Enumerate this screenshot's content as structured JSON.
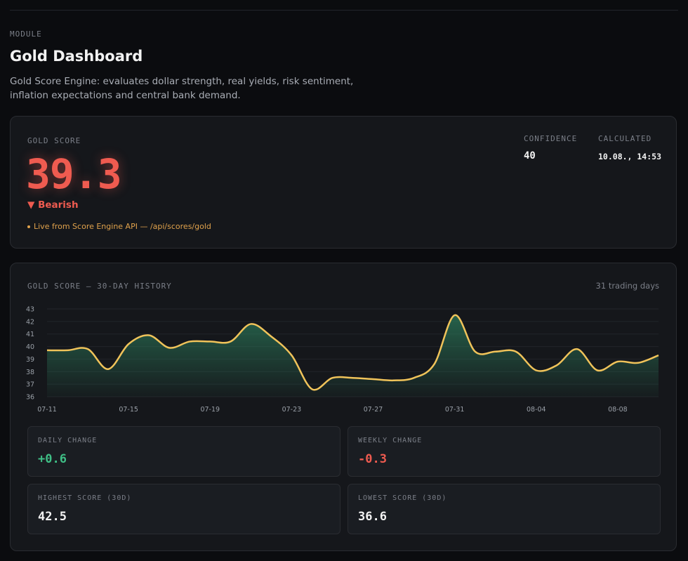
{
  "header": {
    "module_label": "MODULE",
    "title": "Gold Dashboard",
    "description": "Gold Score Engine: evaluates dollar strength, real yields, risk sentiment, inflation expectations and central bank demand."
  },
  "score_card": {
    "label": "GOLD SCORE",
    "value": "39.3",
    "sentiment": "▼ Bearish",
    "live_source": "Live from Score Engine API — /api/scores/gold",
    "confidence_label": "CONFIDENCE",
    "confidence_value": "40",
    "calculated_label": "CALCULATED",
    "calculated_value": "10.08., 14:53",
    "colors": {
      "bearish": "#ef5b50",
      "live": "#e0a24c"
    }
  },
  "history": {
    "title": "GOLD SCORE — 30-DAY HISTORY",
    "trading_days": "31 trading days"
  },
  "chart_data": {
    "type": "area",
    "title": "",
    "xlabel": "",
    "ylabel": "",
    "ylim": [
      36,
      43
    ],
    "yticks": [
      43,
      42,
      41,
      40,
      39,
      38,
      37,
      36
    ],
    "xticks": [
      "07-11",
      "07-15",
      "07-19",
      "07-23",
      "07-27",
      "07-31",
      "08-04",
      "08-08"
    ],
    "grid": true,
    "line_color": "#f0c35a",
    "fill_color": "#2b7a5a",
    "x": [
      "07-11",
      "07-12",
      "07-13",
      "07-14",
      "07-15",
      "07-16",
      "07-17",
      "07-18",
      "07-19",
      "07-20",
      "07-21",
      "07-22",
      "07-23",
      "07-24",
      "07-25",
      "07-26",
      "07-27",
      "07-28",
      "07-29",
      "07-30",
      "07-31",
      "08-01",
      "08-02",
      "08-03",
      "08-04",
      "08-05",
      "08-06",
      "08-07",
      "08-08",
      "08-09",
      "08-10"
    ],
    "values": [
      39.7,
      39.7,
      39.8,
      38.2,
      40.2,
      40.9,
      39.9,
      40.4,
      40.4,
      40.4,
      41.8,
      40.8,
      39.3,
      36.6,
      37.5,
      37.5,
      37.4,
      37.3,
      37.5,
      38.6,
      42.5,
      39.6,
      39.6,
      39.6,
      38.1,
      38.5,
      39.8,
      38.1,
      38.8,
      38.7,
      39.3
    ]
  },
  "stats": {
    "daily_change": {
      "label": "DAILY CHANGE",
      "value": "+0.6"
    },
    "weekly_change": {
      "label": "WEEKLY CHANGE",
      "value": "-0.3"
    },
    "highest": {
      "label": "HIGHEST SCORE (30D)",
      "value": "42.5"
    },
    "lowest": {
      "label": "LOWEST SCORE (30D)",
      "value": "36.6"
    }
  }
}
